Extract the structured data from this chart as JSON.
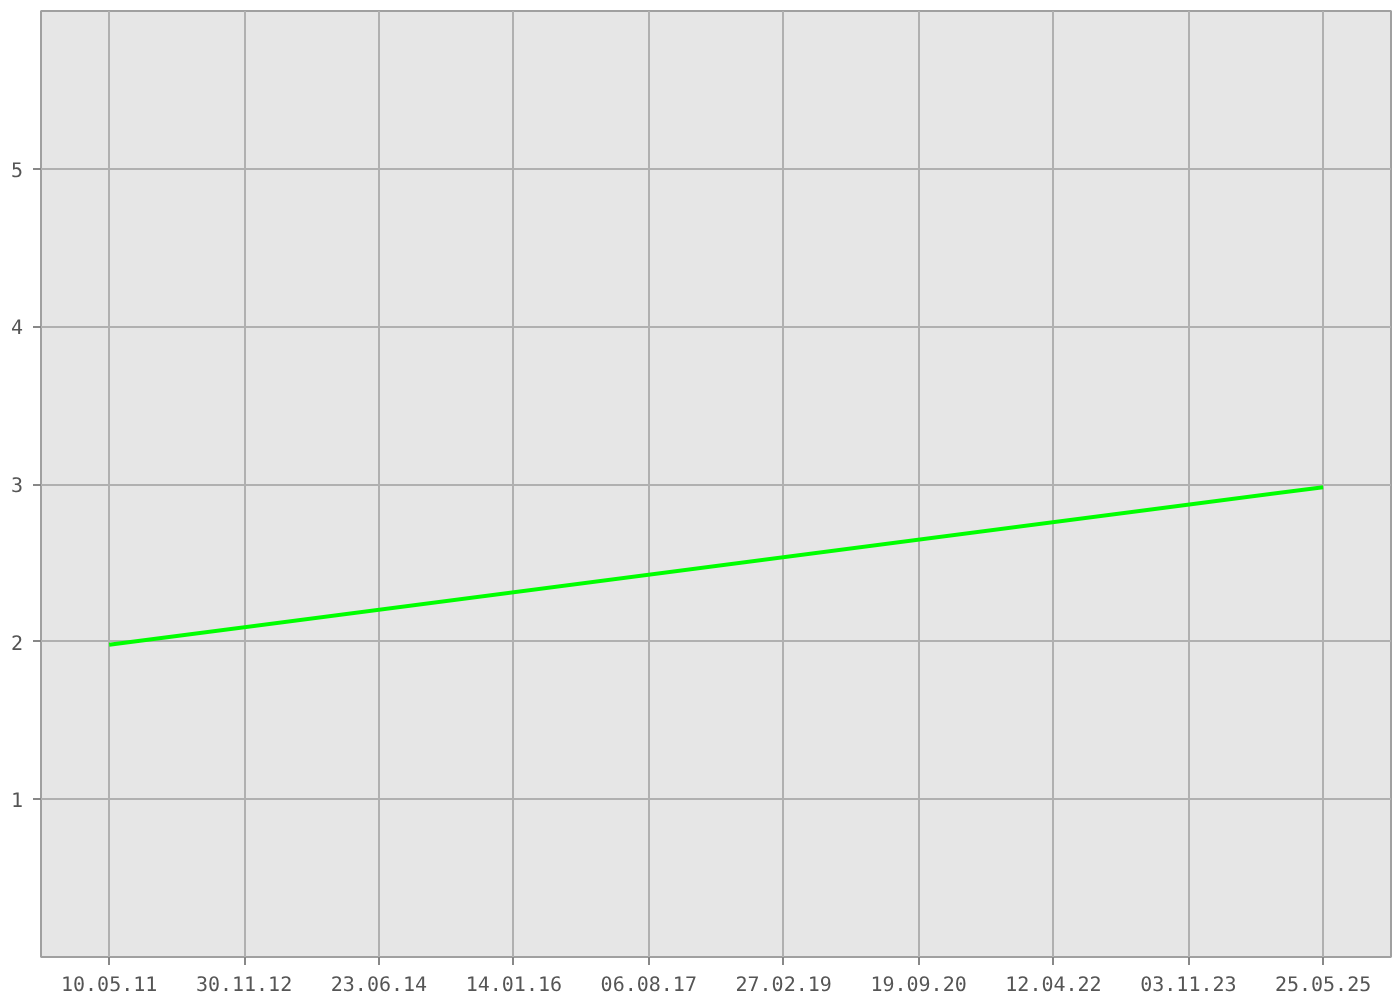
{
  "chart_data": {
    "type": "line",
    "x": [
      "2011-05-10",
      "2025-05-25"
    ],
    "series": [
      {
        "color": "#00ff00",
        "values": [
          1.98,
          2.98
        ]
      }
    ],
    "xlim": [
      "2010-07-26",
      "2026-03-08"
    ],
    "xticks": [
      {
        "value": "2011-05-10",
        "label": "10.05.11"
      },
      {
        "value": "2012-11-30",
        "label": "30.11.12"
      },
      {
        "value": "2014-06-23",
        "label": "23.06.14"
      },
      {
        "value": "2016-01-14",
        "label": "14.01.16"
      },
      {
        "value": "2017-08-06",
        "label": "06.08.17"
      },
      {
        "value": "2019-02-27",
        "label": "27.02.19"
      },
      {
        "value": "2020-09-19",
        "label": "19.09.20"
      },
      {
        "value": "2022-04-12",
        "label": "12.04.22"
      },
      {
        "value": "2023-11-03",
        "label": "03.11.23"
      },
      {
        "value": "2025-05-25",
        "label": "25.05.25"
      }
    ],
    "ylim": [
      0,
      6
    ],
    "yticks": [
      1,
      2,
      3,
      4,
      5
    ],
    "grid": true,
    "marker": "none",
    "line_style": "solid"
  }
}
